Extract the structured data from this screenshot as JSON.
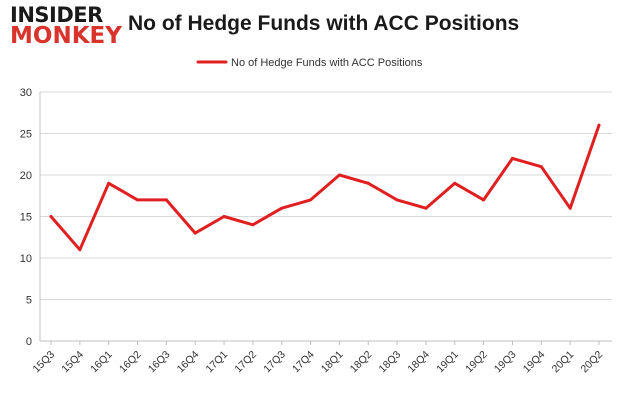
{
  "logo": {
    "line1": "INSIDER",
    "line2": "MONKEY"
  },
  "chart_data": {
    "type": "line",
    "title": "No of Hedge Funds with ACC Positions",
    "legend": {
      "position": "top-center"
    },
    "grid": true,
    "ylim": [
      0,
      30
    ],
    "yticks": [
      0,
      5,
      10,
      15,
      20,
      25,
      30
    ],
    "categories": [
      "15Q3",
      "15Q4",
      "16Q1",
      "16Q2",
      "16Q3",
      "16Q4",
      "17Q1",
      "17Q2",
      "17Q3",
      "17Q4",
      "18Q1",
      "18Q2",
      "18Q3",
      "18Q4",
      "19Q1",
      "19Q2",
      "19Q3",
      "19Q4",
      "20Q1",
      "20Q2"
    ],
    "series": [
      {
        "name": "No of Hedge Funds with ACC Positions",
        "color": "#e02020",
        "values": [
          15,
          11,
          19,
          17,
          17,
          13,
          15,
          14,
          16,
          17,
          20,
          19,
          17,
          16,
          19,
          17,
          22,
          21,
          16,
          26
        ]
      }
    ]
  }
}
